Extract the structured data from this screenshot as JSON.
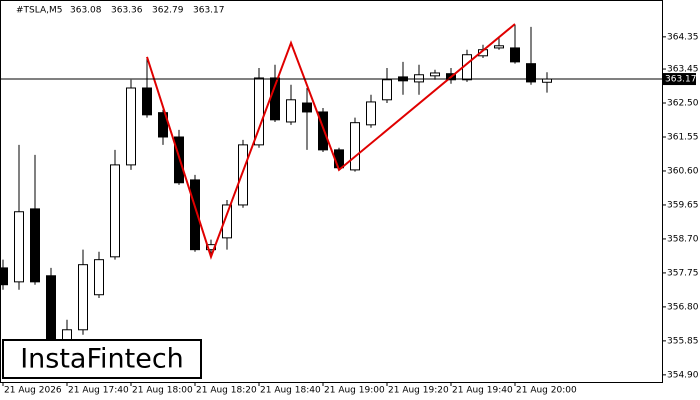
{
  "chart_data": {
    "type": "candlestick",
    "title": "#TSLA,M5",
    "last_ohlc": [
      363.08,
      363.36,
      362.79,
      363.17
    ],
    "categories": [
      "21 Aug 2026",
      null,
      null,
      null,
      "21 Aug 17:40",
      null,
      null,
      null,
      "21 Aug 18:00",
      null,
      null,
      null,
      "21 Aug 18:20",
      null,
      null,
      null,
      "21 Aug 18:40",
      null,
      null,
      null,
      "21 Aug 19:00",
      null,
      null,
      null,
      "21 Aug 19:20",
      null,
      null,
      null,
      "21 Aug 19:40",
      null,
      null,
      null,
      "21 Aug 20:00",
      null,
      null
    ],
    "open": [
      357.89,
      357.5,
      359.54,
      357.67,
      355.88,
      356.16,
      357.14,
      358.2,
      360.77,
      362.92,
      362.23,
      361.55,
      360.35,
      358.4,
      358.73,
      359.65,
      361.33,
      363.2,
      361.97,
      362.5,
      362.25,
      361.19,
      360.63,
      361.89,
      362.59,
      363.23,
      363.09,
      363.26,
      363.32,
      363.15,
      363.82,
      364.04,
      364.04,
      363.6,
      363.08
    ],
    "high": [
      358.12,
      361.33,
      361.05,
      357.89,
      356.44,
      358.4,
      358.34,
      361.19,
      363.15,
      363.76,
      362.31,
      361.75,
      360.49,
      358.68,
      359.79,
      361.47,
      363.48,
      363.57,
      363.01,
      362.92,
      362.36,
      361.25,
      362.09,
      362.73,
      363.48,
      363.65,
      363.57,
      363.43,
      363.48,
      363.99,
      364.13,
      364.32,
      364.69,
      364.63,
      363.36
    ],
    "low": [
      357.28,
      357.28,
      357.42,
      354.9,
      355.74,
      356.02,
      357.05,
      358.12,
      360.63,
      362.09,
      361.33,
      360.21,
      358.34,
      358.17,
      358.4,
      359.57,
      361.25,
      361.97,
      361.89,
      361.19,
      361.13,
      360.63,
      360.58,
      361.81,
      362.5,
      362.73,
      362.73,
      363.15,
      363.04,
      363.09,
      363.76,
      363.99,
      363.6,
      363.01,
      362.79
    ],
    "close": [
      357.42,
      359.46,
      357.5,
      355.32,
      356.16,
      357.98,
      358.12,
      360.77,
      362.92,
      362.17,
      361.55,
      360.27,
      358.4,
      358.54,
      359.65,
      361.33,
      363.2,
      362.03,
      362.59,
      362.25,
      361.19,
      360.69,
      361.95,
      362.53,
      363.15,
      363.12,
      363.29,
      363.34,
      363.15,
      363.85,
      363.99,
      364.1,
      363.65,
      363.09,
      363.17
    ],
    "up_color": "#ffffff",
    "down_color": "#000000",
    "pattern": {
      "color": "#e00000",
      "x": [
        9,
        13,
        18,
        21,
        32
      ],
      "values": [
        363.79,
        358.2,
        364.18,
        360.63,
        364.71
      ]
    },
    "current_price": 363.17,
    "ylim": [
      354.7,
      365.38
    ],
    "yticks": [
      364.35,
      363.45,
      {
        "value": 362.5,
        "label": "362.50"
      },
      361.55,
      {
        "value": 360.6,
        "label": "360.60"
      },
      359.65,
      {
        "value": 358.7,
        "label": "358.70"
      },
      357.75,
      {
        "value": 356.8,
        "label": "356.80"
      },
      355.85,
      {
        "value": 354.9,
        "label": "354.90"
      }
    ],
    "logo": "InstaFintech"
  }
}
